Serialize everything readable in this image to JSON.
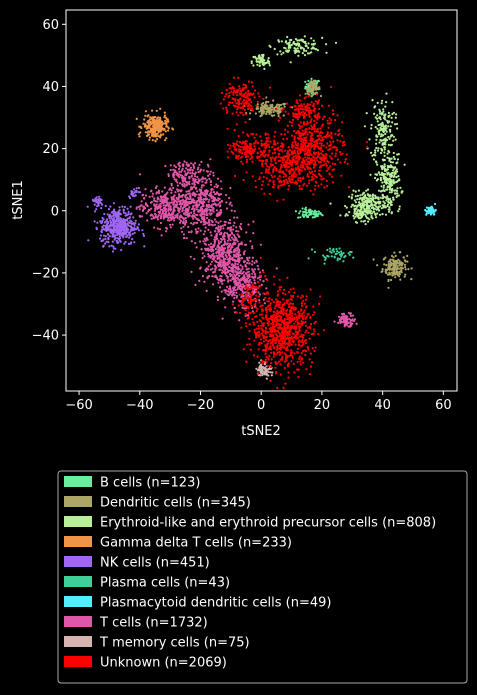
{
  "chart_data": {
    "type": "scatter",
    "xlabel": "tSNE2",
    "ylabel": "tSNE1",
    "xlim": [
      -62,
      64
    ],
    "ylim": [
      -58,
      65
    ],
    "xticks": [
      -60,
      -40,
      -20,
      0,
      20,
      40,
      60
    ],
    "yticks": [
      -40,
      -20,
      0,
      20,
      40,
      60
    ],
    "legend_position": "below",
    "series": [
      {
        "name": "B cells (n=123)",
        "color": "#66f0a0",
        "clusters": [
          {
            "cx": 17,
            "cy": 40,
            "sx": 1.2,
            "sy": 1.2,
            "n": 60
          },
          {
            "cx": 16,
            "cy": -1,
            "sx": 2,
            "sy": 0.8,
            "n": 63
          }
        ]
      },
      {
        "name": "Dendritic cells (n=345)",
        "color": "#aba666",
        "clusters": [
          {
            "cx": 44,
            "cy": -18,
            "sx": 2,
            "sy": 2,
            "n": 160
          },
          {
            "cx": 17,
            "cy": 39.5,
            "sx": 1.2,
            "sy": 1,
            "n": 60
          },
          {
            "cx": 3,
            "cy": 32.5,
            "sx": 3,
            "sy": 1.2,
            "n": 125
          }
        ]
      },
      {
        "name": "Erythroid-like and erythroid precursor cells (n=808)",
        "color": "#b8f09a",
        "clusters": [
          {
            "cx": 12,
            "cy": 53,
            "sx": 4,
            "sy": 1.3,
            "n": 110
          },
          {
            "cx": 0,
            "cy": 48,
            "sx": 1.5,
            "sy": 1.3,
            "n": 60
          },
          {
            "cx": 40,
            "cy": 26,
            "sx": 2,
            "sy": 5,
            "n": 160
          },
          {
            "cx": 42,
            "cy": 10,
            "sx": 2,
            "sy": 4,
            "n": 200
          },
          {
            "cx": 36,
            "cy": 2,
            "sx": 3.5,
            "sy": 2,
            "n": 220
          },
          {
            "cx": 33,
            "cy": -1,
            "sx": 2,
            "sy": 1,
            "n": 58
          }
        ]
      },
      {
        "name": "Gamma delta T cells (n=233)",
        "color": "#f09548",
        "clusters": [
          {
            "cx": -35,
            "cy": 27,
            "sx": 2,
            "sy": 2,
            "n": 233
          }
        ]
      },
      {
        "name": "NK cells (n=451)",
        "color": "#a066f5",
        "clusters": [
          {
            "cx": -47,
            "cy": -5,
            "sx": 3,
            "sy": 3,
            "n": 400
          },
          {
            "cx": -54,
            "cy": 3,
            "sx": 1,
            "sy": 1,
            "n": 30
          },
          {
            "cx": -42,
            "cy": 6,
            "sx": 0.8,
            "sy": 0.8,
            "n": 21
          }
        ]
      },
      {
        "name": "Plasma cells (n=43)",
        "color": "#3fd09a",
        "clusters": [
          {
            "cx": 24,
            "cy": -14,
            "sx": 3,
            "sy": 1,
            "n": 43
          }
        ]
      },
      {
        "name": "Plasmacytoid dendritic cells (n=49)",
        "color": "#4ff0ff",
        "clusters": [
          {
            "cx": 56,
            "cy": 0,
            "sx": 0.8,
            "sy": 0.8,
            "n": 49
          }
        ]
      },
      {
        "name": "T cells (n=1732)",
        "color": "#e056a8",
        "clusters": [
          {
            "cx": -32,
            "cy": 1,
            "sx": 4,
            "sy": 3,
            "n": 300
          },
          {
            "cx": -20,
            "cy": 3,
            "sx": 4,
            "sy": 5,
            "n": 450
          },
          {
            "cx": -12,
            "cy": -14,
            "sx": 4,
            "sy": 5,
            "n": 500
          },
          {
            "cx": -6,
            "cy": -24,
            "sx": 3,
            "sy": 4,
            "n": 300
          },
          {
            "cx": 28,
            "cy": -35,
            "sx": 1.5,
            "sy": 1,
            "n": 80
          },
          {
            "cx": -25,
            "cy": 12,
            "sx": 3,
            "sy": 2,
            "n": 102
          }
        ]
      },
      {
        "name": "T memory cells (n=75)",
        "color": "#d6b4b0",
        "clusters": [
          {
            "cx": 1,
            "cy": -51,
            "sx": 1.2,
            "sy": 1.2,
            "n": 75
          }
        ]
      },
      {
        "name": "Unknown (n=2069)",
        "color": "#ff0000",
        "clusters": [
          {
            "cx": 7,
            "cy": -38,
            "sx": 5,
            "sy": 6,
            "n": 800
          },
          {
            "cx": 17,
            "cy": 20,
            "sx": 5,
            "sy": 6,
            "n": 500
          },
          {
            "cx": 7,
            "cy": 15,
            "sx": 5,
            "sy": 4,
            "n": 300
          },
          {
            "cx": -7,
            "cy": 36,
            "sx": 3,
            "sy": 3,
            "n": 150
          },
          {
            "cx": -4,
            "cy": 20,
            "sx": 3,
            "sy": 2,
            "n": 150
          },
          {
            "cx": 14,
            "cy": 32,
            "sx": 3,
            "sy": 2,
            "n": 100
          },
          {
            "cx": -4,
            "cy": -28,
            "sx": 2,
            "sy": 3,
            "n": 69
          }
        ]
      }
    ]
  }
}
